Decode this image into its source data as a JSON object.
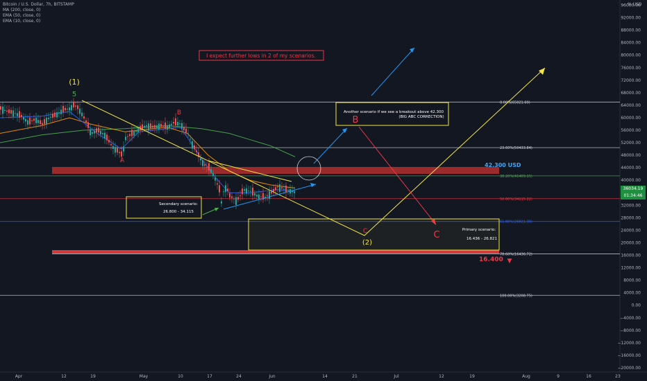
{
  "header": {
    "symbol": "Bitcoin / U.S. Dollar, 7h, BITSTAMP",
    "indicators": [
      "MA (200, close, 0)",
      "EMA (50, close, 0)",
      "EMA (10, close, 0)"
    ],
    "currency_unit": "% USD"
  },
  "price_badge": {
    "price": "36034.19",
    "countdown": "01:34:46"
  },
  "chart_data": {
    "type": "candlestick",
    "title": "",
    "xlabel": "",
    "ylabel": "",
    "x_ticks": [
      "Apr",
      "12",
      "19",
      "May",
      "10",
      "17",
      "24",
      "Jun",
      "14",
      "21",
      "Jul",
      "12",
      "19",
      "Aug",
      "9",
      "16",
      "23"
    ],
    "y_ticks": [
      "96000.00",
      "92000.00",
      "88000.00",
      "84000.00",
      "80000.00",
      "76000.00",
      "72000.00",
      "68000.00",
      "64000.00",
      "60000.00",
      "56000.00",
      "52000.00",
      "48000.00",
      "44000.00",
      "40000.00",
      "36000.00",
      "32000.00",
      "28000.00",
      "24000.00",
      "20000.00",
      "16000.00",
      "12000.00",
      "8000.00",
      "4000.00",
      "0.00",
      "−4000.00",
      "−8000.00",
      "−12000.00",
      "−16000.00",
      "−20000.00"
    ],
    "ylim": [
      -22000,
      98000
    ],
    "grid": false,
    "fib_levels": [
      {
        "label": "0.00%(65021.69)",
        "value": 65021.69
      },
      {
        "label": "23.60%(50433.84)",
        "value": 50433.84
      },
      {
        "label": "38.20%(41409.15)",
        "value": 41409.15
      },
      {
        "label": "50.00%(34115.22)",
        "value": 34115.22
      },
      {
        "label": "61.80%(26821.30)",
        "value": 26821.3
      },
      {
        "label": "78.60%(16436.72)",
        "value": 16436.72
      },
      {
        "label": "100.00%(3208.75)",
        "value": 3208.75
      }
    ],
    "wave_labels": [
      "(1)",
      "5",
      "A",
      "B",
      "C",
      "(2)",
      "B",
      "C"
    ],
    "price_labels": {
      "breakout": "42.300 USD",
      "low_target": "16.400"
    },
    "annotations": {
      "headline": "I expect further lows in 2 of my scenarios.",
      "another_line1": "Another scenario if we see a breakout above 42.300",
      "another_line2": "(BIG ABC CORRECTION)",
      "secondary_title": "Secondary scenario:",
      "secondary_range": "26.800 - 34.115",
      "primary_title": "Primary scenario:",
      "primary_range": "16.436 - 26.821"
    },
    "series": [
      {
        "name": "Price",
        "color": "#26a69a",
        "points": [
          [
            0,
            63000
          ],
          [
            10,
            62000
          ],
          [
            20,
            61500
          ],
          [
            30,
            60500
          ],
          [
            40,
            58500
          ],
          [
            50,
            59500
          ],
          [
            60,
            58000
          ],
          [
            70,
            60000
          ],
          [
            80,
            61000
          ],
          [
            90,
            62500
          ],
          [
            100,
            63000
          ],
          [
            105,
            64000
          ],
          [
            110,
            63500
          ],
          [
            115,
            62000
          ],
          [
            120,
            60000
          ],
          [
            125,
            58000
          ],
          [
            130,
            55000
          ],
          [
            140,
            56000
          ],
          [
            150,
            54500
          ],
          [
            160,
            51000
          ],
          [
            170,
            49000
          ],
          [
            175,
            48000
          ],
          [
            180,
            53500
          ],
          [
            190,
            55000
          ],
          [
            200,
            56500
          ],
          [
            210,
            57500
          ],
          [
            220,
            57000
          ],
          [
            230,
            57500
          ],
          [
            240,
            57000
          ],
          [
            250,
            58500
          ],
          [
            260,
            58000
          ],
          [
            265,
            56000
          ],
          [
            270,
            55000
          ],
          [
            275,
            52000
          ],
          [
            280,
            50000
          ],
          [
            285,
            48000
          ],
          [
            290,
            46000
          ],
          [
            295,
            44500
          ],
          [
            300,
            44000
          ],
          [
            305,
            42500
          ],
          [
            310,
            40000
          ],
          [
            315,
            37000
          ],
          [
            318,
            33000
          ],
          [
            320,
            36000
          ],
          [
            325,
            38000
          ],
          [
            330,
            35000
          ],
          [
            340,
            33500
          ],
          [
            345,
            35000
          ],
          [
            350,
            37000
          ],
          [
            360,
            36500
          ],
          [
            370,
            35000
          ],
          [
            380,
            34500
          ],
          [
            390,
            36000
          ],
          [
            400,
            38000
          ],
          [
            410,
            37000
          ],
          [
            420,
            36500
          ],
          [
            425,
            36000
          ]
        ]
      },
      {
        "name": "MA (200, close, 0)",
        "color": "#4caf50",
        "points": [
          [
            0,
            52000
          ],
          [
            60,
            54500
          ],
          [
            120,
            56000
          ],
          [
            180,
            56500
          ],
          [
            240,
            57500
          ],
          [
            290,
            56500
          ],
          [
            330,
            55000
          ],
          [
            360,
            53000
          ],
          [
            390,
            51000
          ],
          [
            425,
            47500
          ]
        ]
      },
      {
        "name": "EMA (50, close, 0)",
        "color": "#ff9800",
        "points": [
          [
            0,
            55000
          ],
          [
            60,
            57500
          ],
          [
            100,
            60000
          ],
          [
            130,
            58000
          ],
          [
            180,
            55500
          ],
          [
            240,
            57000
          ],
          [
            270,
            55000
          ],
          [
            300,
            48000
          ],
          [
            330,
            43000
          ],
          [
            360,
            40000
          ],
          [
            390,
            38500
          ],
          [
            425,
            37500
          ]
        ]
      },
      {
        "name": "EMA (10, close, 0)",
        "color": "#2962ff",
        "points": [
          [
            0,
            60000
          ],
          [
            60,
            60500
          ],
          [
            100,
            62000
          ],
          [
            140,
            55000
          ],
          [
            175,
            50000
          ],
          [
            200,
            55500
          ],
          [
            260,
            57000
          ],
          [
            290,
            47000
          ],
          [
            310,
            41000
          ],
          [
            330,
            36000
          ],
          [
            360,
            36000
          ],
          [
            400,
            37000
          ],
          [
            425,
            36500
          ]
        ]
      }
    ]
  }
}
